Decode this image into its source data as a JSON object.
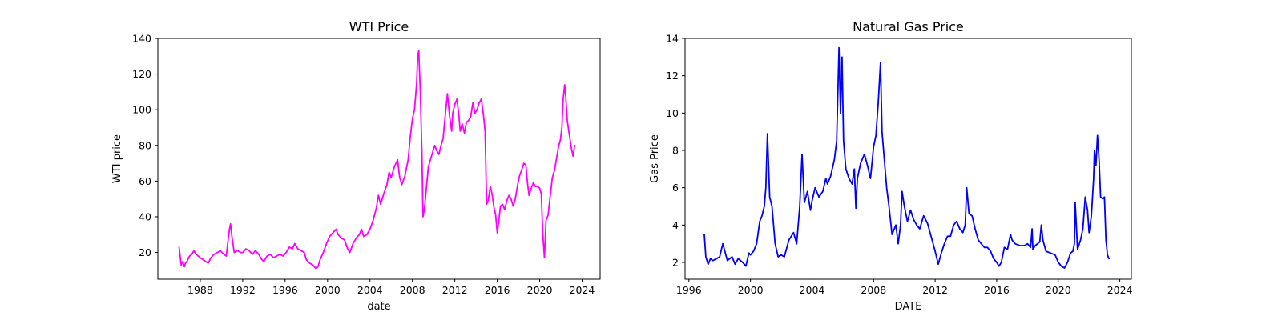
{
  "chart_data": [
    {
      "type": "line",
      "title": "WTI Price",
      "xlabel": "date",
      "ylabel": "WTI price",
      "color": "#ff00ff",
      "xlim": [
        1984.0,
        2025.7
      ],
      "ylim": [
        5,
        140
      ],
      "xticks": [
        1988,
        1992,
        1996,
        2000,
        2004,
        2008,
        2012,
        2016,
        2020,
        2024
      ],
      "yticks": [
        20,
        40,
        60,
        80,
        100,
        120,
        140
      ],
      "grid": false,
      "legend": "none",
      "series": [
        {
          "x": [
            1986.0,
            1986.1,
            1986.2,
            1986.35,
            1986.5,
            1986.6,
            1986.75,
            1986.9,
            1987.0,
            1987.2,
            1987.4,
            1987.6,
            1987.8,
            1988.0,
            1988.25,
            1988.5,
            1988.75,
            1989.0,
            1989.3,
            1989.6,
            1989.9,
            1990.2,
            1990.45,
            1990.6,
            1990.75,
            1990.85,
            1991.0,
            1991.2,
            1991.5,
            1991.8,
            1992.0,
            1992.3,
            1992.6,
            1992.9,
            1993.2,
            1993.5,
            1993.8,
            1994.0,
            1994.3,
            1994.6,
            1994.9,
            1995.2,
            1995.5,
            1995.8,
            1996.1,
            1996.4,
            1996.7,
            1996.9,
            1997.2,
            1997.5,
            1997.8,
            1998.0,
            1998.3,
            1998.6,
            1998.9,
            1999.1,
            1999.3,
            1999.6,
            1999.9,
            2000.2,
            2000.5,
            2000.8,
            2001.0,
            2001.3,
            2001.6,
            2001.9,
            2002.1,
            2002.4,
            2002.7,
            2003.0,
            2003.2,
            2003.4,
            2003.7,
            2004.0,
            2004.3,
            2004.6,
            2004.8,
            2005.0,
            2005.3,
            2005.6,
            2005.8,
            2006.0,
            2006.3,
            2006.6,
            2006.8,
            2007.0,
            2007.3,
            2007.6,
            2007.8,
            2008.0,
            2008.2,
            2008.4,
            2008.5,
            2008.6,
            2008.75,
            2008.9,
            2009.0,
            2009.15,
            2009.3,
            2009.5,
            2009.7,
            2009.9,
            2010.1,
            2010.3,
            2010.5,
            2010.7,
            2010.9,
            2011.0,
            2011.15,
            2011.3,
            2011.5,
            2011.7,
            2011.8,
            2012.0,
            2012.2,
            2012.4,
            2012.5,
            2012.7,
            2012.9,
            2013.1,
            2013.3,
            2013.5,
            2013.7,
            2013.9,
            2014.1,
            2014.3,
            2014.5,
            2014.7,
            2014.85,
            2015.0,
            2015.15,
            2015.35,
            2015.5,
            2015.7,
            2015.85,
            2016.0,
            2016.15,
            2016.3,
            2016.5,
            2016.7,
            2016.9,
            2017.1,
            2017.3,
            2017.5,
            2017.7,
            2017.9,
            2018.1,
            2018.3,
            2018.5,
            2018.7,
            2018.85,
            2019.0,
            2019.2,
            2019.4,
            2019.6,
            2019.8,
            2020.0,
            2020.15,
            2020.3,
            2020.45,
            2020.6,
            2020.8,
            2021.0,
            2021.2,
            2021.4,
            2021.6,
            2021.8,
            2021.95,
            2022.1,
            2022.2,
            2022.35,
            2022.45,
            2022.6,
            2022.75,
            2022.9,
            2023.0,
            2023.15,
            2023.3
          ],
          "y": [
            23,
            18,
            13,
            15,
            12,
            14,
            15,
            17,
            18,
            19,
            21,
            19,
            18,
            17,
            16,
            15,
            14,
            17,
            19,
            20,
            21,
            19,
            18,
            26,
            33,
            36,
            28,
            20,
            21,
            20,
            20,
            22,
            21,
            19,
            21,
            19,
            16,
            15,
            18,
            19,
            17,
            18,
            19,
            18,
            20,
            23,
            22,
            25,
            22,
            21,
            20,
            16,
            14,
            13,
            11,
            12,
            16,
            20,
            25,
            29,
            31,
            33,
            30,
            28,
            27,
            22,
            20,
            25,
            28,
            30,
            33,
            29,
            30,
            33,
            38,
            45,
            52,
            47,
            53,
            58,
            65,
            62,
            68,
            72,
            62,
            58,
            63,
            72,
            85,
            95,
            100,
            115,
            130,
            133,
            110,
            75,
            40,
            45,
            55,
            68,
            72,
            76,
            80,
            77,
            75,
            80,
            84,
            91,
            100,
            109,
            97,
            88,
            98,
            103,
            106,
            96,
            88,
            92,
            87,
            93,
            94,
            96,
            104,
            98,
            100,
            104,
            106,
            97,
            88,
            47,
            49,
            57,
            53,
            45,
            41,
            31,
            38,
            46,
            47,
            44,
            49,
            52,
            50,
            46,
            50,
            57,
            63,
            66,
            70,
            69,
            59,
            52,
            56,
            59,
            57,
            57,
            56,
            53,
            30,
            17,
            38,
            41,
            52,
            62,
            66,
            73,
            80,
            83,
            90,
            105,
            114,
            108,
            94,
            88,
            82,
            78,
            74,
            80
          ]
        }
      ]
    },
    {
      "type": "line",
      "title": "Natural Gas Price",
      "xlabel": "DATE",
      "ylabel": "Gas Price",
      "color": "#0000ff",
      "xlim": [
        1995.75,
        2024.75
      ],
      "ylim": [
        1.1,
        14
      ],
      "xticks": [
        1996,
        2000,
        2004,
        2008,
        2012,
        2016,
        2020,
        2024
      ],
      "yticks": [
        2,
        4,
        6,
        8,
        10,
        12,
        14
      ],
      "grid": false,
      "legend": "none",
      "series": [
        {
          "x": [
            1997.0,
            1997.1,
            1997.25,
            1997.4,
            1997.55,
            1997.8,
            1998.0,
            1998.2,
            1998.5,
            1998.8,
            1999.0,
            1999.2,
            1999.5,
            1999.7,
            1999.9,
            2000.0,
            2000.2,
            2000.4,
            2000.6,
            2000.75,
            2000.9,
            2001.0,
            2001.1,
            2001.25,
            2001.4,
            2001.6,
            2001.8,
            2002.0,
            2002.2,
            2002.5,
            2002.8,
            2003.0,
            2003.1,
            2003.2,
            2003.35,
            2003.5,
            2003.7,
            2003.9,
            2004.0,
            2004.2,
            2004.45,
            2004.7,
            2004.9,
            2005.0,
            2005.2,
            2005.45,
            2005.6,
            2005.75,
            2005.85,
            2005.95,
            2006.05,
            2006.2,
            2006.4,
            2006.6,
            2006.75,
            2006.85,
            2006.95,
            2007.15,
            2007.4,
            2007.6,
            2007.8,
            2008.0,
            2008.15,
            2008.3,
            2008.45,
            2008.55,
            2008.7,
            2008.85,
            2009.0,
            2009.2,
            2009.45,
            2009.6,
            2009.75,
            2009.85,
            2010.0,
            2010.2,
            2010.4,
            2010.6,
            2010.8,
            2011.0,
            2011.25,
            2011.5,
            2011.8,
            2012.0,
            2012.2,
            2012.4,
            2012.6,
            2012.8,
            2013.0,
            2013.2,
            2013.4,
            2013.6,
            2013.8,
            2013.95,
            2014.05,
            2014.2,
            2014.4,
            2014.6,
            2014.8,
            2015.0,
            2015.2,
            2015.4,
            2015.6,
            2015.8,
            2016.0,
            2016.15,
            2016.3,
            2016.5,
            2016.7,
            2016.9,
            2017.0,
            2017.2,
            2017.5,
            2017.8,
            2018.0,
            2018.2,
            2018.3,
            2018.35,
            2018.5,
            2018.8,
            2018.9,
            2019.0,
            2019.2,
            2019.5,
            2019.8,
            2020.0,
            2020.2,
            2020.4,
            2020.6,
            2020.8,
            2020.95,
            2021.05,
            2021.1,
            2021.25,
            2021.45,
            2021.6,
            2021.75,
            2021.9,
            2022.0,
            2022.15,
            2022.3,
            2022.35,
            2022.45,
            2022.55,
            2022.65,
            2022.75,
            2022.9,
            2023.0,
            2023.1,
            2023.2,
            2023.3
          ],
          "y": [
            3.5,
            2.3,
            1.9,
            2.2,
            2.1,
            2.2,
            2.3,
            3.0,
            2.1,
            2.3,
            1.9,
            2.2,
            2.0,
            1.8,
            2.5,
            2.4,
            2.6,
            3.0,
            4.2,
            4.5,
            5.0,
            6.0,
            8.9,
            5.5,
            5.0,
            3.0,
            2.3,
            2.4,
            2.3,
            3.2,
            3.6,
            3.0,
            4.0,
            5.0,
            7.8,
            5.2,
            5.8,
            4.8,
            5.3,
            6.0,
            5.5,
            5.8,
            6.5,
            6.2,
            6.6,
            7.5,
            8.5,
            13.5,
            10.0,
            13.0,
            8.5,
            7.0,
            6.5,
            6.2,
            7.0,
            4.9,
            6.5,
            7.3,
            7.8,
            7.2,
            6.5,
            8.2,
            8.8,
            10.5,
            12.7,
            9.0,
            7.5,
            6.0,
            5.0,
            3.5,
            4.0,
            3.0,
            4.0,
            5.8,
            5.0,
            4.2,
            4.8,
            4.3,
            4.0,
            3.8,
            4.5,
            4.1,
            3.2,
            2.6,
            1.9,
            2.5,
            3.0,
            3.4,
            3.4,
            4.0,
            4.2,
            3.8,
            3.6,
            4.0,
            6.0,
            4.6,
            4.5,
            3.8,
            3.2,
            3.0,
            2.8,
            2.8,
            2.6,
            2.2,
            2.0,
            1.8,
            2.0,
            2.8,
            2.7,
            3.5,
            3.2,
            3.0,
            2.9,
            2.9,
            3.0,
            2.8,
            3.8,
            2.7,
            2.9,
            3.1,
            4.0,
            3.2,
            2.6,
            2.5,
            2.4,
            2.0,
            1.8,
            1.7,
            2.0,
            2.5,
            2.6,
            3.0,
            5.2,
            2.7,
            3.2,
            3.8,
            5.5,
            4.8,
            3.6,
            4.5,
            6.5,
            8.0,
            7.2,
            8.8,
            7.5,
            5.5,
            5.4,
            5.5,
            3.2,
            2.4,
            2.2
          ]
        }
      ]
    }
  ]
}
